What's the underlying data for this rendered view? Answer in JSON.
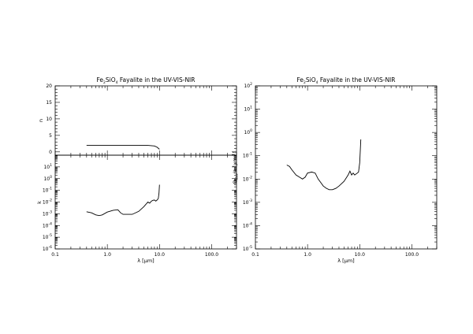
{
  "chart_data": [
    {
      "id": "n",
      "type": "line",
      "title_prefix": "Fe",
      "title_sub1": "2",
      "title_mid": "SiO",
      "title_sub2": "4",
      "title_suffix": " Fayalite in the UV-VIS-NIR",
      "ylabel": "n",
      "xscale": "log",
      "xlim": [
        0.1,
        300
      ],
      "ylim": [
        -1,
        20
      ],
      "yticks": [
        0,
        5,
        10,
        15,
        20
      ],
      "x": [
        0.4,
        0.6,
        1.0,
        2.0,
        4.0,
        6.0,
        8.0,
        9.0,
        10.0
      ],
      "y": [
        2.0,
        2.0,
        2.0,
        2.0,
        2.0,
        1.95,
        1.8,
        1.4,
        0.8
      ]
    },
    {
      "id": "k",
      "type": "line",
      "xlabel": "λ [μm]",
      "ylabel": "k",
      "xscale": "log",
      "yscale": "log",
      "xlim": [
        0.1,
        300
      ],
      "ylim": [
        1e-06,
        100
      ],
      "xtick_labels": [
        "0.1",
        "1.0",
        "10.0",
        "100.0"
      ],
      "ytick_exponents": [
        "-6",
        "-5",
        "-4",
        "-3",
        "-2",
        "-1",
        "0",
        "1"
      ],
      "x": [
        0.4,
        0.5,
        0.6,
        0.7,
        0.8,
        1.0,
        1.3,
        1.6,
        1.8,
        2.0,
        2.5,
        3.0,
        4.0,
        5.0,
        6.0,
        6.5,
        7.0,
        7.5,
        8.0,
        8.5,
        9.0,
        9.5,
        9.8,
        10.0
      ],
      "y": [
        0.0015,
        0.0012,
        0.0008,
        0.0007,
        0.0008,
        0.0014,
        0.002,
        0.0022,
        0.0012,
        0.0009,
        0.0009,
        0.0009,
        0.0016,
        0.004,
        0.01,
        0.008,
        0.012,
        0.014,
        0.015,
        0.012,
        0.015,
        0.02,
        0.06,
        0.3
      ]
    },
    {
      "id": "q",
      "type": "line",
      "title_prefix": "Fe",
      "title_sub1": "2",
      "title_mid": "SiO",
      "title_sub2": "4",
      "title_suffix": " Fayalite in the UV-VIS-NIR",
      "xlabel": "λ [μm]",
      "ylabel_main": "Q",
      "ylabel_sub": "abs",
      "ylabel_tail": "/a [μm",
      "ylabel_sup": "-1",
      "ylabel_end": "]",
      "xscale": "log",
      "yscale": "log",
      "xlim": [
        0.1,
        300
      ],
      "ylim": [
        1e-05,
        100
      ],
      "xtick_labels": [
        "0.1",
        "1.0",
        "10.0",
        "100.0"
      ],
      "ytick_exponents": [
        "-5",
        "-4",
        "-3",
        "-2",
        "-1",
        "0",
        "1",
        "2"
      ],
      "x": [
        0.4,
        0.45,
        0.5,
        0.6,
        0.7,
        0.8,
        0.9,
        1.0,
        1.2,
        1.4,
        1.6,
        1.8,
        2.0,
        2.3,
        2.6,
        3.0,
        3.5,
        4.0,
        5.0,
        6.0,
        6.5,
        7.0,
        7.5,
        8.0,
        9.0,
        9.5,
        10.0,
        10.5
      ],
      "y": [
        0.04,
        0.035,
        0.025,
        0.015,
        0.012,
        0.01,
        0.012,
        0.018,
        0.02,
        0.018,
        0.01,
        0.007,
        0.005,
        0.004,
        0.0035,
        0.0035,
        0.004,
        0.005,
        0.008,
        0.015,
        0.022,
        0.015,
        0.018,
        0.015,
        0.018,
        0.02,
        0.05,
        0.5
      ]
    }
  ]
}
